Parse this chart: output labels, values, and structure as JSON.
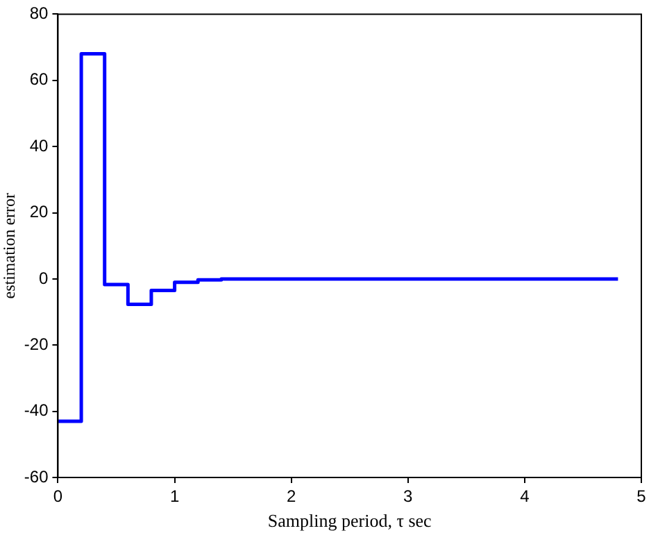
{
  "chart_data": {
    "type": "step",
    "xlabel": "Sampling period, τ sec",
    "ylabel": "estimation error",
    "x": [
      0,
      0.2,
      0.4,
      0.6,
      0.8,
      1.0,
      1.2,
      1.4,
      4.8
    ],
    "series": [
      {
        "color": "#0000ff",
        "values": [
          -43,
          68,
          -1.7,
          -7.7,
          -3.5,
          -1,
          -0.3,
          0,
          0
        ]
      }
    ],
    "xlim": [
      0,
      5
    ],
    "xticks": [
      0,
      1,
      2,
      3,
      4,
      5
    ],
    "ylim": [
      -60,
      80
    ],
    "yticks": [
      -60,
      -40,
      -20,
      0,
      20,
      40,
      60,
      80
    ],
    "grid": false,
    "legend": false,
    "marker": "none",
    "line_style": "solid"
  }
}
